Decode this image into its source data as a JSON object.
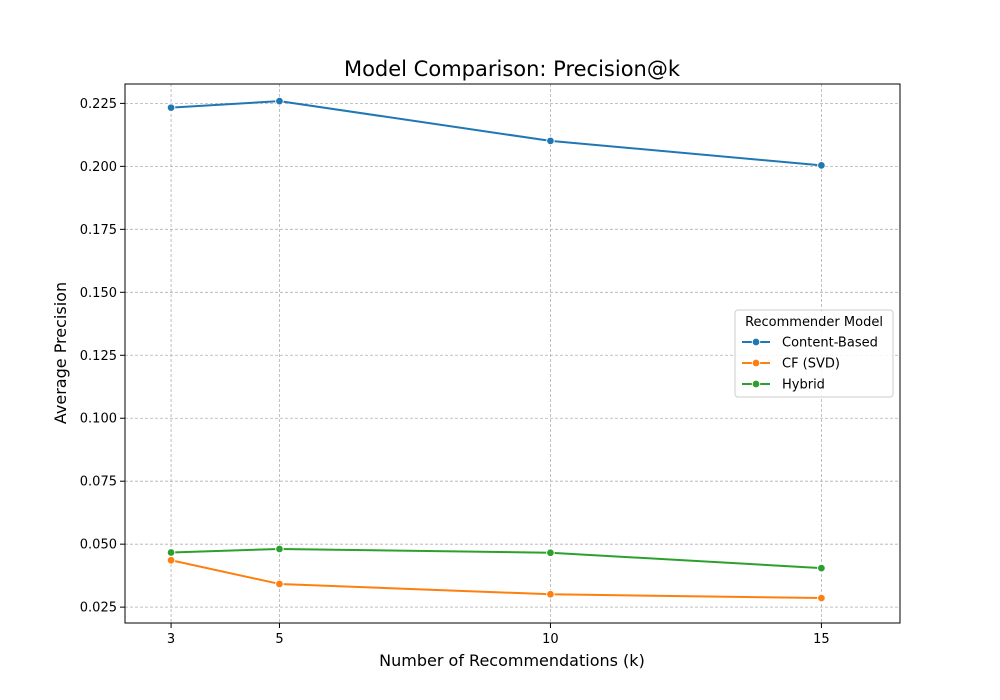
{
  "chart_data": {
    "type": "line",
    "title": "Model Comparison: Precision@k",
    "xlabel": "Number of Recommendations (k)",
    "ylabel": "Average Precision",
    "x": [
      3,
      5,
      10,
      15
    ],
    "x_ticks": [
      "3",
      "5",
      "10",
      "15"
    ],
    "xlim": [
      2.15,
      16.45
    ],
    "ylim": [
      0.0187,
      0.2327
    ],
    "y_ticks": [
      "0.025",
      "0.050",
      "0.075",
      "0.100",
      "0.125",
      "0.150",
      "0.175",
      "0.200",
      "0.225"
    ],
    "grid": true,
    "grid_style": "dashed",
    "legend": {
      "title": "Recommender Model",
      "position": "center-right"
    },
    "series": [
      {
        "name": "Content-Based",
        "color": "#1f77b4",
        "values": [
          0.2233,
          0.2259,
          0.2101,
          0.2004
        ]
      },
      {
        "name": "CF (SVD)",
        "color": "#ff7f0e",
        "values": [
          0.0436,
          0.0342,
          0.0301,
          0.0286
        ]
      },
      {
        "name": "Hybrid",
        "color": "#2ca02c",
        "values": [
          0.0467,
          0.0481,
          0.0466,
          0.0405
        ]
      }
    ]
  }
}
